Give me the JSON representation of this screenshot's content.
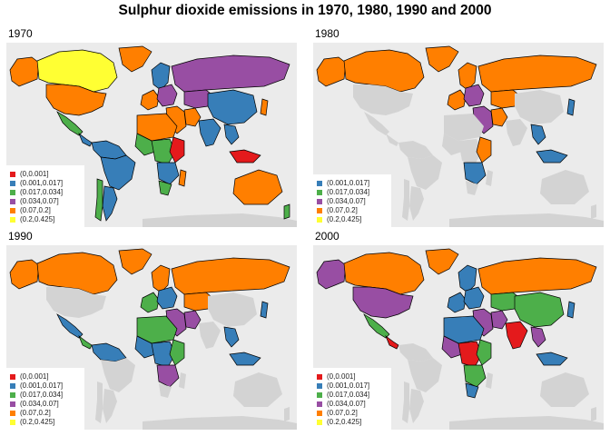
{
  "title": "Sulphur dioxide emissions in 1970, 1980, 1990 and 2000",
  "classes": [
    {
      "key": "c1",
      "label": "(0,0.001]",
      "color": "#e41a1c"
    },
    {
      "key": "c2",
      "label": "(0.001,0.017]",
      "color": "#377eb8"
    },
    {
      "key": "c3",
      "label": "(0.017,0.034]",
      "color": "#4daf4a"
    },
    {
      "key": "c4",
      "label": "(0.034,0.07]",
      "color": "#984ea3"
    },
    {
      "key": "c5",
      "label": "(0.07,0.2]",
      "color": "#ff7f00"
    },
    {
      "key": "c6",
      "label": "(0.2,0.425]",
      "color": "#ffff33"
    }
  ],
  "no_data_color": "#d3d3d3",
  "panel_background": "#ebebeb",
  "panels": [
    {
      "year": "1970",
      "legend": [
        "c1",
        "c2",
        "c3",
        "c4",
        "c5",
        "c6"
      ],
      "regions": {
        "canada": "c6",
        "usa": "c5",
        "alaska": "c5",
        "greenland": "c5",
        "mexico": "c3",
        "central_america": "c2",
        "south_america_north": "c2",
        "brazil": "c2",
        "argentina": "c2",
        "chile": "c3",
        "western_europe": "c5",
        "scandinavia": "c2",
        "eastern_europe": "c4",
        "russia": "c4",
        "middle_east": "c5",
        "iran": "c5",
        "central_asia": "c4",
        "china": "c2",
        "india": "c2",
        "southeast_asia": "c2",
        "japan": "c5",
        "north_africa": "c5",
        "west_africa": "c3",
        "central_africa": "c3",
        "east_africa": "c1",
        "southern_africa": "c2",
        "south_africa": "c3",
        "madagascar": "c5",
        "australia": "c5",
        "indonesia": "c1",
        "new_zealand": "c3"
      }
    },
    {
      "year": "1980",
      "legend": [
        "c2",
        "c3",
        "c4",
        "c5",
        "c6"
      ],
      "regions": {
        "canada": "c5",
        "usa": null,
        "alaska": "c5",
        "greenland": "c5",
        "mexico": null,
        "central_america": null,
        "south_america_north": null,
        "brazil": null,
        "argentina": null,
        "chile": null,
        "western_europe": "c5",
        "scandinavia": "c5",
        "eastern_europe": "c4",
        "russia": "c5",
        "middle_east": "c4",
        "iran": "c5",
        "central_asia": "c5",
        "china": null,
        "india": null,
        "southeast_asia": "c2",
        "japan": "c2",
        "north_africa": null,
        "west_africa": null,
        "central_africa": null,
        "east_africa": "c5",
        "southern_africa": "c2",
        "south_africa": null,
        "madagascar": null,
        "australia": null,
        "indonesia": "c2",
        "new_zealand": null
      }
    },
    {
      "year": "1990",
      "legend": [
        "c1",
        "c2",
        "c3",
        "c4",
        "c5",
        "c6"
      ],
      "regions": {
        "canada": "c5",
        "usa": null,
        "alaska": "c5",
        "greenland": "c5",
        "mexico": "c2",
        "central_america": "c3",
        "south_america_north": "c2",
        "brazil": null,
        "argentina": null,
        "chile": null,
        "western_europe": "c3",
        "scandinavia": "c5",
        "eastern_europe": "c2",
        "russia": "c5",
        "middle_east": "c4",
        "iran": "c4",
        "central_asia": "c5",
        "china": null,
        "india": null,
        "southeast_asia": "c2",
        "japan": "c2",
        "north_africa": "c3",
        "west_africa": "c2",
        "central_africa": "c2",
        "east_africa": "c3",
        "southern_africa": "c4",
        "south_africa": null,
        "madagascar": null,
        "australia": null,
        "indonesia": "c2",
        "new_zealand": null
      }
    },
    {
      "year": "2000",
      "legend": [
        "c1",
        "c2",
        "c3",
        "c4",
        "c5",
        "c6"
      ],
      "regions": {
        "canada": "c5",
        "usa": "c4",
        "alaska": "c4",
        "greenland": "c5",
        "mexico": "c3",
        "central_america": "c1",
        "south_america_north": null,
        "brazil": null,
        "argentina": null,
        "chile": null,
        "western_europe": "c2",
        "scandinavia": "c2",
        "eastern_europe": "c2",
        "russia": "c5",
        "middle_east": "c4",
        "iran": "c4",
        "central_asia": "c3",
        "china": "c3",
        "india": "c1",
        "southeast_asia": "c4",
        "japan": "c2",
        "north_africa": "c2",
        "west_africa": "c4",
        "central_africa": "c1",
        "east_africa": "c3",
        "southern_africa": "c3",
        "south_africa": "c2",
        "madagascar": null,
        "australia": null,
        "indonesia": "c2",
        "new_zealand": null
      }
    }
  ]
}
